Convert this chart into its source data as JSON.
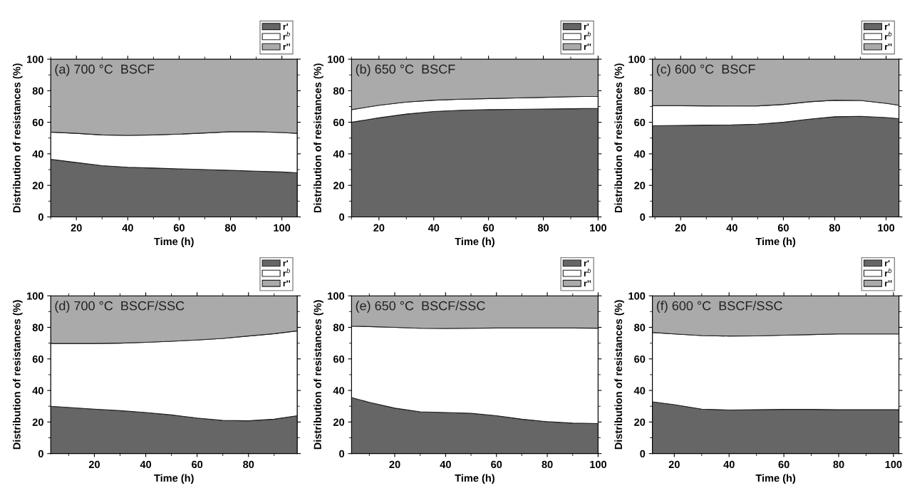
{
  "chart_data": [
    {
      "type": "area",
      "stacked": true,
      "annotations": [
        "(a) 700 °C  BSCF"
      ],
      "xlabel": "Time (h)",
      "ylabel": "Distribution of resistances (%)",
      "legend": "top right",
      "grid": false,
      "x": [
        10,
        20,
        30,
        40,
        50,
        60,
        70,
        80,
        90,
        100,
        106
      ],
      "xlim": [
        10,
        106
      ],
      "xticks": [
        20,
        40,
        60,
        80,
        100
      ],
      "ylim": [
        0,
        100
      ],
      "yticks": [
        0,
        20,
        40,
        60,
        80,
        100
      ],
      "series": [
        {
          "name": "r'",
          "color": "#666666",
          "values": [
            36.5,
            34.5,
            32.5,
            31.5,
            31,
            30.5,
            30,
            29.5,
            29,
            28.5,
            28
          ]
        },
        {
          "name": "r$^{b}$",
          "color": "#ffffff",
          "values": [
            17.3,
            18.5,
            19.5,
            20.2,
            21,
            22,
            23.2,
            24.5,
            25,
            25,
            25
          ]
        },
        {
          "name": "r''",
          "color": "#aaaaaa",
          "values": [
            46.2,
            47,
            48,
            48.3,
            48,
            47.5,
            46.8,
            46,
            46,
            46.5,
            47
          ]
        }
      ]
    },
    {
      "type": "area",
      "stacked": true,
      "annotations": [
        "(b) 650 °C  BSCF"
      ],
      "xlabel": "Time (h)",
      "ylabel": "Distribution of resistances (%)",
      "legend": "top right",
      "grid": false,
      "x": [
        10,
        20,
        30,
        40,
        50,
        60,
        70,
        80,
        90,
        100
      ],
      "xlim": [
        10,
        100
      ],
      "xticks": [
        20,
        40,
        60,
        80,
        100
      ],
      "ylim": [
        0,
        100
      ],
      "yticks": [
        0,
        20,
        40,
        60,
        80,
        100
      ],
      "series": [
        {
          "name": "r'",
          "color": "#666666",
          "values": [
            60,
            62.8,
            65.2,
            66.8,
            67.6,
            68,
            68.2,
            68.4,
            68.6,
            68.8
          ]
        },
        {
          "name": "r$^{b}$",
          "color": "#ffffff",
          "values": [
            8,
            8,
            7.6,
            7.2,
            7,
            7,
            7.2,
            7.4,
            7.6,
            7.6
          ]
        },
        {
          "name": "r''",
          "color": "#aaaaaa",
          "values": [
            32,
            29.2,
            27.2,
            26,
            25.4,
            25,
            24.6,
            24.2,
            23.8,
            23.6
          ]
        }
      ]
    },
    {
      "type": "area",
      "stacked": true,
      "annotations": [
        "(c) 600 °C  BSCF"
      ],
      "xlabel": "Time (h)",
      "ylabel": "Distribution of resistances (%)",
      "legend": "top right",
      "grid": false,
      "x": [
        9,
        20,
        30,
        40,
        50,
        60,
        70,
        80,
        90,
        100,
        105
      ],
      "xlim": [
        9,
        105
      ],
      "xticks": [
        20,
        40,
        60,
        80,
        100
      ],
      "ylim": [
        0,
        100
      ],
      "yticks": [
        0,
        20,
        40,
        60,
        80,
        100
      ],
      "series": [
        {
          "name": "r'",
          "color": "#666666",
          "values": [
            57.8,
            58,
            58.2,
            58.3,
            58.8,
            60,
            62,
            63.5,
            63.8,
            63,
            62.3
          ]
        },
        {
          "name": "r$^{b}$",
          "color": "#ffffff",
          "values": [
            12.7,
            12.5,
            12.2,
            12,
            11.6,
            11.3,
            11,
            10.5,
            10,
            9,
            8.5
          ]
        },
        {
          "name": "r''",
          "color": "#aaaaaa",
          "values": [
            29.5,
            29.5,
            29.6,
            29.7,
            29.6,
            28.7,
            27,
            26,
            26.2,
            28,
            29.2
          ]
        }
      ]
    },
    {
      "type": "area",
      "stacked": true,
      "annotations": [
        "(d) 700 °C  BSCF/SSC"
      ],
      "xlabel": "Time (h)",
      "ylabel": "Distribution of resistances (%)",
      "legend": "top right",
      "grid": false,
      "x": [
        3,
        20,
        30,
        40,
        50,
        60,
        70,
        80,
        90,
        99
      ],
      "xlim": [
        3,
        99
      ],
      "xticks": [
        20,
        40,
        60,
        80
      ],
      "ylim": [
        0,
        100
      ],
      "yticks": [
        0,
        20,
        40,
        60,
        80,
        100
      ],
      "series": [
        {
          "name": "r'",
          "color": "#666666",
          "values": [
            30,
            28.2,
            27.2,
            26,
            24.5,
            22.5,
            21,
            20.8,
            21.8,
            24
          ]
        },
        {
          "name": "r$^{b}$",
          "color": "#ffffff",
          "values": [
            39.8,
            41.6,
            42.8,
            44.5,
            46.7,
            49.5,
            52,
            53.7,
            54.2,
            53.8
          ]
        },
        {
          "name": "r''",
          "color": "#aaaaaa",
          "values": [
            30.2,
            30.2,
            30,
            29.5,
            28.8,
            28,
            27,
            25.5,
            24,
            22.2
          ]
        }
      ]
    },
    {
      "type": "area",
      "stacked": true,
      "annotations": [
        "(e) 650 °C  BSCF/SSC"
      ],
      "xlabel": "Time (h)",
      "ylabel": "Distribution of resistances (%)",
      "legend": "top right",
      "grid": false,
      "x": [
        3,
        10,
        20,
        30,
        40,
        50,
        60,
        70,
        80,
        90,
        100
      ],
      "xlim": [
        3,
        100
      ],
      "xticks": [
        20,
        40,
        60,
        80,
        100
      ],
      "ylim": [
        0,
        100
      ],
      "yticks": [
        0,
        20,
        40,
        60,
        80,
        100
      ],
      "series": [
        {
          "name": "r'",
          "color": "#666666",
          "values": [
            35.5,
            32.5,
            28.8,
            26.5,
            26,
            25.5,
            24,
            21.8,
            20.2,
            19.3,
            19
          ]
        },
        {
          "name": "r$^{b}$",
          "color": "#ffffff",
          "values": [
            45.3,
            48,
            51.2,
            52.9,
            53.3,
            53.9,
            55.6,
            57.8,
            59.4,
            60.3,
            60.5
          ]
        },
        {
          "name": "r''",
          "color": "#aaaaaa",
          "values": [
            19.2,
            19.5,
            20,
            20.6,
            20.7,
            20.6,
            20.4,
            20.4,
            20.4,
            20.4,
            20.5
          ]
        }
      ]
    },
    {
      "type": "area",
      "stacked": true,
      "annotations": [
        "(f) 600 °C  BSCF/SSC"
      ],
      "xlabel": "Time (h)",
      "ylabel": "Distribution of resistances (%)",
      "legend": "top right",
      "grid": false,
      "x": [
        12,
        20,
        30,
        40,
        50,
        60,
        70,
        80,
        90,
        102
      ],
      "xlim": [
        12,
        102
      ],
      "xticks": [
        20,
        40,
        60,
        80,
        100
      ],
      "ylim": [
        0,
        100
      ],
      "yticks": [
        0,
        20,
        40,
        60,
        80,
        100
      ],
      "series": [
        {
          "name": "r'",
          "color": "#666666",
          "values": [
            32.8,
            31,
            28.2,
            27.6,
            27.8,
            28,
            28,
            27.8,
            27.8,
            27.8
          ]
        },
        {
          "name": "r$^{b}$",
          "color": "#ffffff",
          "values": [
            44,
            44.8,
            46.6,
            46.9,
            46.8,
            47,
            47.4,
            48,
            48,
            48
          ]
        },
        {
          "name": "r''",
          "color": "#aaaaaa",
          "values": [
            23.2,
            24.2,
            25.2,
            25.5,
            25.4,
            25,
            24.6,
            24.2,
            24.2,
            24.2
          ]
        }
      ]
    }
  ]
}
